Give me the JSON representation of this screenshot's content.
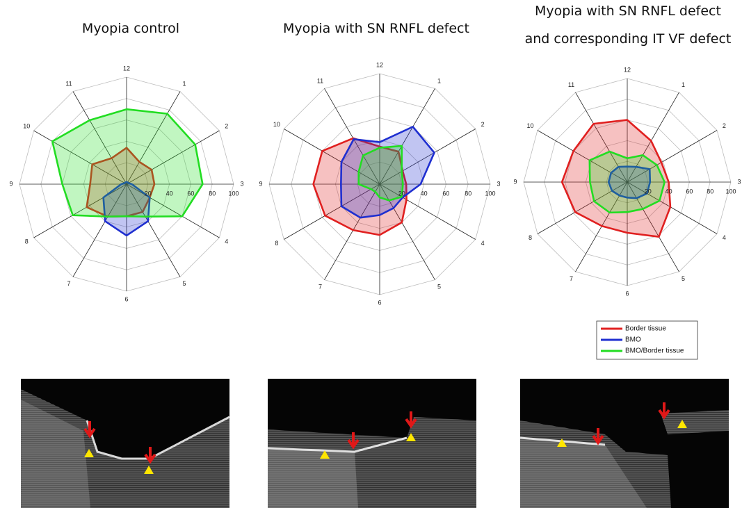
{
  "chart_data": [
    {
      "type": "radar",
      "title": [
        "Myopia control"
      ],
      "categories": [
        "12",
        "1",
        "2",
        "3",
        "4",
        "5",
        "6",
        "7",
        "8",
        "9",
        "10",
        "11"
      ],
      "rlim": [
        0,
        100
      ],
      "rticks": [
        20,
        40,
        60,
        80,
        100
      ],
      "legend": false,
      "series": [
        {
          "color": "#e02020",
          "values": [
            34,
            24,
            27,
            26,
            25,
            30,
            30,
            35,
            43,
            34,
            37,
            28
          ]
        },
        {
          "color": "#1f2fd0",
          "values": [
            2,
            2,
            2,
            5,
            25,
            40,
            48,
            40,
            25,
            5,
            2,
            2
          ]
        },
        {
          "color": "#22dd22",
          "values": [
            70,
            76,
            74,
            71,
            60,
            35,
            30,
            35,
            58,
            60,
            80,
            69
          ]
        }
      ]
    },
    {
      "type": "radar",
      "title": [
        "Myopia with SN RNFL defect"
      ],
      "categories": [
        "12",
        "1",
        "2",
        "3",
        "4",
        "5",
        "6",
        "7",
        "8",
        "9",
        "10",
        "11"
      ],
      "rlim": [
        0,
        100
      ],
      "rticks": [
        20,
        40,
        60,
        80,
        100
      ],
      "legend": false,
      "series": [
        {
          "color": "#e02020",
          "values": [
            34,
            34,
            24,
            24,
            28,
            40,
            46,
            48,
            57,
            60,
            60,
            48
          ]
        },
        {
          "color": "#1f2fd0",
          "values": [
            38,
            60,
            57,
            37,
            24,
            25,
            28,
            35,
            40,
            35,
            40,
            47
          ]
        },
        {
          "color": "#22dd22",
          "values": [
            33,
            40,
            23,
            21,
            23,
            17,
            12,
            8,
            9,
            19,
            22,
            30
          ]
        }
      ]
    },
    {
      "type": "radar",
      "title": [
        "Myopia with SN RNFL defect",
        "and corresponding IT VF defect"
      ],
      "categories": [
        "12",
        "1",
        "2",
        "3",
        "4",
        "5",
        "6",
        "7",
        "8",
        "9",
        "10",
        "11"
      ],
      "rlim": [
        0,
        100
      ],
      "rticks": [
        20,
        40,
        60,
        80,
        100
      ],
      "legend": true,
      "series": [
        {
          "name": "Border tissue",
          "color": "#e02020",
          "values": [
            60,
            46,
            38,
            40,
            48,
            61,
            49,
            49,
            58,
            63,
            60,
            65
          ]
        },
        {
          "name": "BMO",
          "color": "#1f2fd0",
          "values": [
            15,
            17,
            25,
            22,
            22,
            18,
            15,
            15,
            17,
            18,
            18,
            17
          ]
        },
        {
          "name": "BMO/Border tissue",
          "color": "#22dd22",
          "values": [
            23,
            30,
            33,
            36,
            36,
            30,
            29,
            34,
            37,
            36,
            42,
            34
          ]
        }
      ]
    }
  ]
}
